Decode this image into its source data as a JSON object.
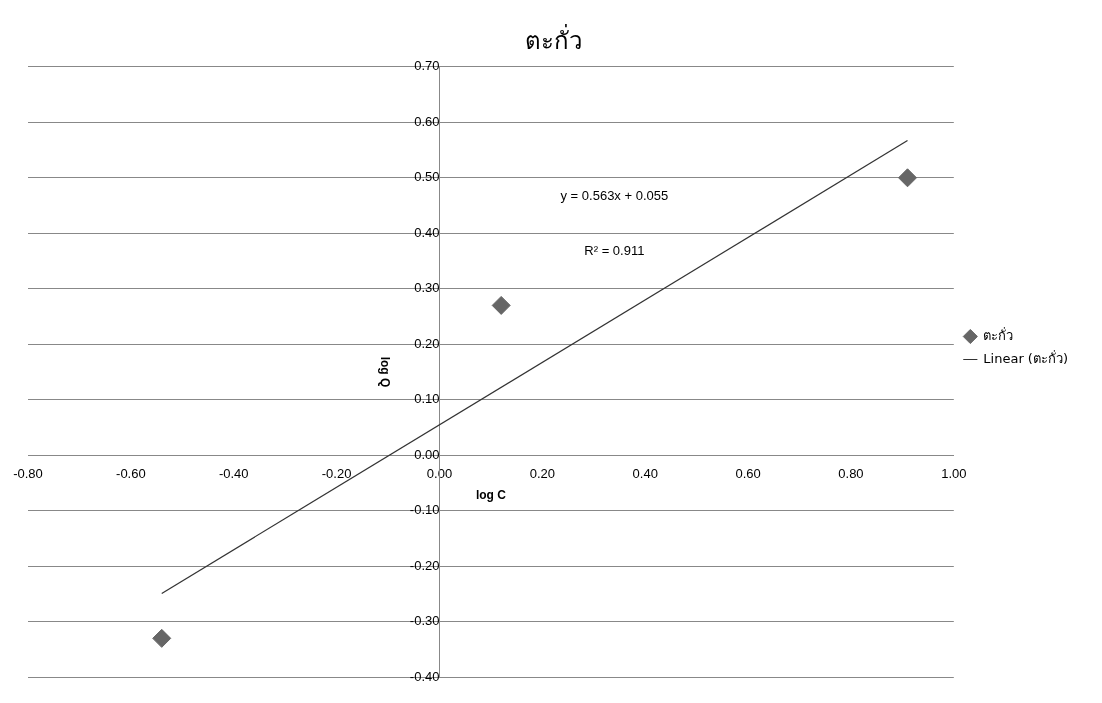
{
  "chart_data": {
    "type": "scatter",
    "title": "ตะกั่ว",
    "xlabel": "log C",
    "ylabel": "log Q",
    "xlim": [
      -0.8,
      1.0
    ],
    "xticks": [
      {
        "value": -0.8,
        "label": "-0.80"
      },
      {
        "value": -0.6,
        "label": "-0.60"
      },
      {
        "value": -0.4,
        "label": "-0.40"
      },
      {
        "value": -0.2,
        "label": "-0.20"
      },
      {
        "value": 0,
        "label": "0.00"
      },
      {
        "value": 0.2,
        "label": "0.20"
      },
      {
        "value": 0.4,
        "label": "0.40"
      },
      {
        "value": 0.6,
        "label": "0.60"
      },
      {
        "value": 0.8,
        "label": "0.80"
      },
      {
        "value": 1.0,
        "label": "1.00"
      }
    ],
    "ylim": [
      -0.4,
      0.7
    ],
    "yticks": [
      {
        "value": -0.4,
        "label": "-0.40"
      },
      {
        "value": -0.3,
        "label": "-0.30"
      },
      {
        "value": -0.2,
        "label": "-0.20"
      },
      {
        "value": -0.1,
        "label": "-0.10"
      },
      {
        "value": 0,
        "label": "0.00"
      },
      {
        "value": 0.1,
        "label": "0.10"
      },
      {
        "value": 0.2,
        "label": "0.20"
      },
      {
        "value": 0.3,
        "label": "0.30"
      },
      {
        "value": 0.4,
        "label": "0.40"
      },
      {
        "value": 0.5,
        "label": "0.50"
      },
      {
        "value": 0.6,
        "label": "0.60"
      },
      {
        "value": 0.7,
        "label": "0.70"
      }
    ],
    "grid": "y",
    "legend": "right",
    "marker": "diamond",
    "series": [
      {
        "name": "ตะกั่ว",
        "color": "#666666",
        "x": [
          -0.54,
          0.12,
          0.91
        ],
        "values": [
          -0.33,
          0.27,
          0.5
        ]
      },
      {
        "name": "Linear (ตะกั่ว)",
        "type": "line",
        "color": "#333333",
        "x": [
          -0.54,
          0.91
        ],
        "values": [
          -0.249,
          0.567
        ],
        "marker": "none",
        "line_style": "solid"
      }
    ],
    "annotations": [
      "y = 0.563x + 0.055",
      "R² = 0.911"
    ]
  }
}
